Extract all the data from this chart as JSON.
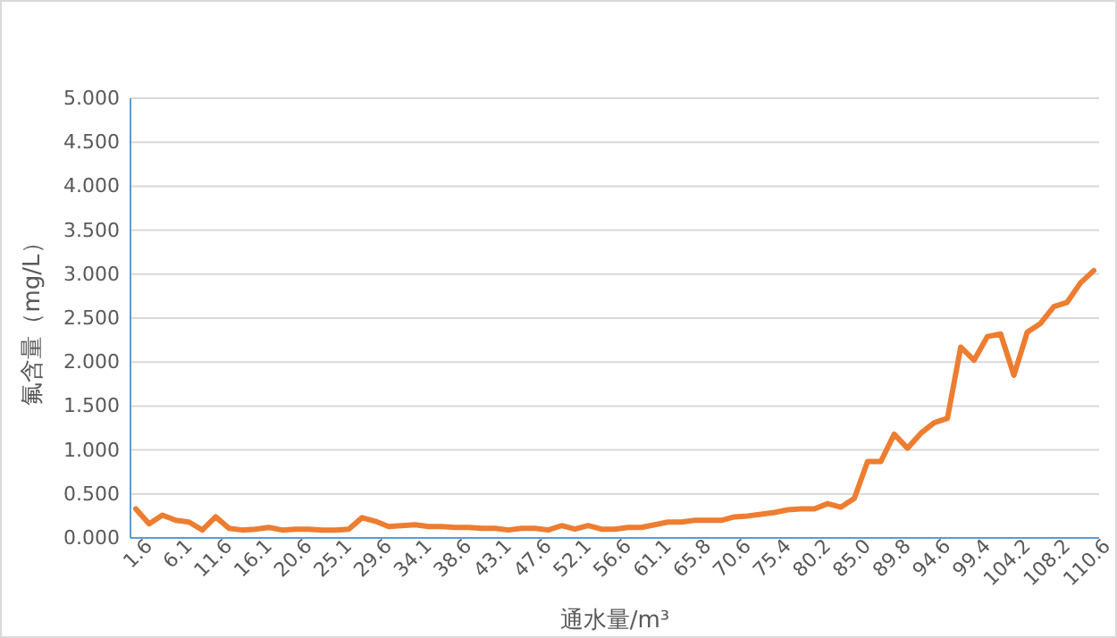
{
  "chart_data": {
    "type": "line",
    "xlabel": "通水量/m³",
    "ylabel": "氟含量（mg/L）",
    "categories": [
      "1.6",
      null,
      null,
      "6.1",
      null,
      null,
      "11.6",
      null,
      null,
      "16.1",
      null,
      null,
      "20.6",
      null,
      null,
      "25.1",
      null,
      null,
      "29.6",
      null,
      null,
      "34.1",
      null,
      null,
      "38.6",
      null,
      null,
      "43.1",
      null,
      null,
      "47.6",
      null,
      null,
      "52.1",
      null,
      null,
      "56.6",
      null,
      null,
      "61.1",
      null,
      null,
      "65.8",
      null,
      null,
      "70.6",
      null,
      null,
      "75.4",
      null,
      null,
      "80.2",
      null,
      null,
      "85.0",
      null,
      null,
      "89.8",
      null,
      null,
      "94.6",
      null,
      null,
      "99.4",
      null,
      null,
      "104.2",
      null,
      null,
      "108.2",
      null,
      null,
      "110.6"
    ],
    "series": [
      {
        "color": "#ed7d31",
        "values": [
          0.33,
          0.16,
          0.26,
          0.2,
          0.18,
          0.09,
          0.24,
          0.11,
          0.09,
          0.1,
          0.12,
          0.09,
          0.1,
          0.1,
          0.09,
          0.09,
          0.1,
          0.23,
          0.19,
          0.13,
          0.14,
          0.15,
          0.13,
          0.13,
          0.12,
          0.12,
          0.11,
          0.11,
          0.09,
          0.11,
          0.11,
          0.09,
          0.14,
          0.1,
          0.14,
          0.1,
          0.1,
          0.12,
          0.12,
          0.15,
          0.18,
          0.18,
          0.2,
          0.2,
          0.2,
          0.24,
          0.25,
          0.27,
          0.29,
          0.32,
          0.33,
          0.33,
          0.39,
          0.35,
          0.45,
          0.87,
          0.87,
          1.18,
          1.02,
          1.19,
          1.31,
          1.36,
          2.17,
          2.02,
          2.29,
          2.32,
          1.85,
          2.34,
          2.44,
          2.63,
          2.68,
          2.9,
          3.04
        ]
      }
    ],
    "ylim": [
      0,
      5
    ],
    "yticks": [
      {
        "value": 0,
        "label": "0.000"
      },
      {
        "value": 0.5,
        "label": "0.500"
      },
      {
        "value": 1,
        "label": "1.000"
      },
      {
        "value": 1.5,
        "label": "1.500"
      },
      {
        "value": 2,
        "label": "2.000"
      },
      {
        "value": 2.5,
        "label": "2.500"
      },
      {
        "value": 3,
        "label": "3.000"
      },
      {
        "value": 3.5,
        "label": "3.500"
      },
      {
        "value": 4,
        "label": "4.000"
      },
      {
        "value": 4.5,
        "label": "4.500"
      },
      {
        "value": 5,
        "label": "5.000"
      }
    ],
    "grid": "y",
    "marker": "none",
    "line_style": "solid"
  }
}
